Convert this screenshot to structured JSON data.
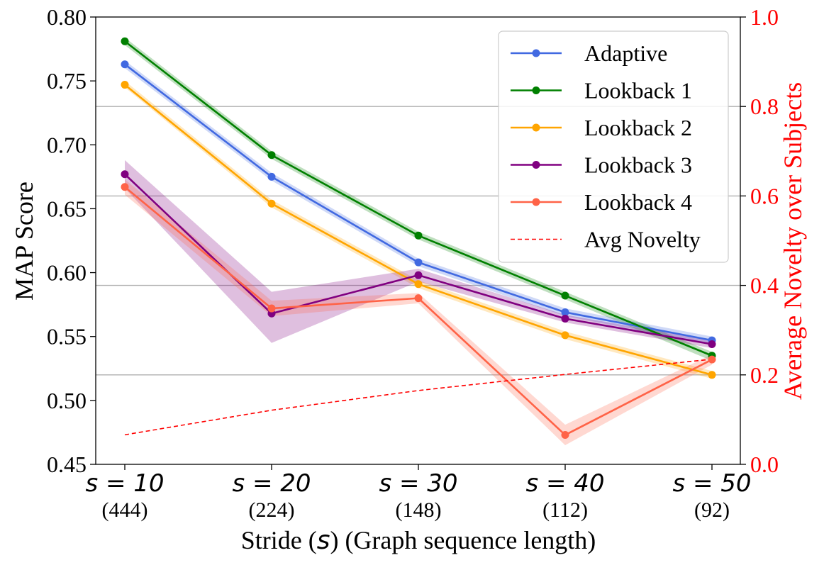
{
  "chart_data": {
    "type": "line",
    "title": "",
    "xlabel": "Stride (s) (Graph sequence length)",
    "xlabel_parts": {
      "pre": "Stride (",
      "var": "s",
      "post": ") (Graph sequence length)"
    },
    "ylabel": "MAP Score",
    "y2label": "Average Novelty over Subjects",
    "categories": [
      "s = 10",
      "s = 20",
      "s = 30",
      "s = 40",
      "s = 50"
    ],
    "x_ticks": [
      {
        "main": "s = 10",
        "sub": "(444)"
      },
      {
        "main": "s = 20",
        "sub": "(224)"
      },
      {
        "main": "s = 30",
        "sub": "(148)"
      },
      {
        "main": "s = 40",
        "sub": "(112)"
      },
      {
        "main": "s = 50",
        "sub": "(92)"
      }
    ],
    "ylim": [
      0.45,
      0.8
    ],
    "yticks": [
      "0.45",
      "0.50",
      "0.55",
      "0.60",
      "0.65",
      "0.70",
      "0.75",
      "0.80"
    ],
    "y2lim": [
      0.0,
      1.0
    ],
    "y2ticks": [
      "0.0",
      "0.2",
      "0.4",
      "0.6",
      "0.8",
      "1.0"
    ],
    "y2_gridlines": [
      0.2,
      0.4,
      0.6,
      0.8
    ],
    "legend_position": "top-right",
    "series": [
      {
        "name": "Adaptive",
        "color": "#4169e1",
        "axis": "left",
        "style": "solid-markers",
        "values": [
          0.763,
          0.675,
          0.608,
          0.569,
          0.547
        ],
        "band": [
          [
            0.76,
            0.766
          ],
          [
            0.672,
            0.678
          ],
          [
            0.605,
            0.611
          ],
          [
            0.566,
            0.572
          ],
          [
            0.544,
            0.55
          ]
        ]
      },
      {
        "name": "Lookback 1",
        "color": "#008000",
        "axis": "left",
        "style": "solid-markers",
        "values": [
          0.781,
          0.692,
          0.629,
          0.582,
          0.535
        ],
        "band": [
          [
            0.778,
            0.784
          ],
          [
            0.689,
            0.695
          ],
          [
            0.626,
            0.632
          ],
          [
            0.579,
            0.585
          ],
          [
            0.531,
            0.538
          ]
        ]
      },
      {
        "name": "Lookback 2",
        "color": "#ffa500",
        "axis": "left",
        "style": "solid-markers",
        "values": [
          0.747,
          0.654,
          0.591,
          0.551,
          0.52
        ],
        "band": [
          [
            0.745,
            0.75
          ],
          [
            0.651,
            0.657
          ],
          [
            0.588,
            0.594
          ],
          [
            0.548,
            0.554
          ],
          [
            0.517,
            0.523
          ]
        ]
      },
      {
        "name": "Lookback 3",
        "color": "#800080",
        "axis": "left",
        "style": "solid-markers",
        "values": [
          0.677,
          0.568,
          0.598,
          0.564,
          0.544
        ],
        "band": [
          [
            0.666,
            0.688
          ],
          [
            0.545,
            0.585
          ],
          [
            0.593,
            0.603
          ],
          [
            0.561,
            0.567
          ],
          [
            0.541,
            0.547
          ]
        ]
      },
      {
        "name": "Lookback 4",
        "color": "#ff6347",
        "axis": "left",
        "style": "solid-markers",
        "values": [
          0.667,
          0.572,
          0.58,
          0.473,
          0.532
        ],
        "band": [
          [
            0.661,
            0.673
          ],
          [
            0.566,
            0.578
          ],
          [
            0.576,
            0.584
          ],
          [
            0.465,
            0.481
          ],
          [
            0.528,
            0.536
          ]
        ]
      },
      {
        "name": "Avg Novelty",
        "color": "#ff0000",
        "axis": "right",
        "style": "dashed",
        "values": [
          0.066,
          0.121,
          0.165,
          0.201,
          0.235
        ]
      }
    ]
  }
}
